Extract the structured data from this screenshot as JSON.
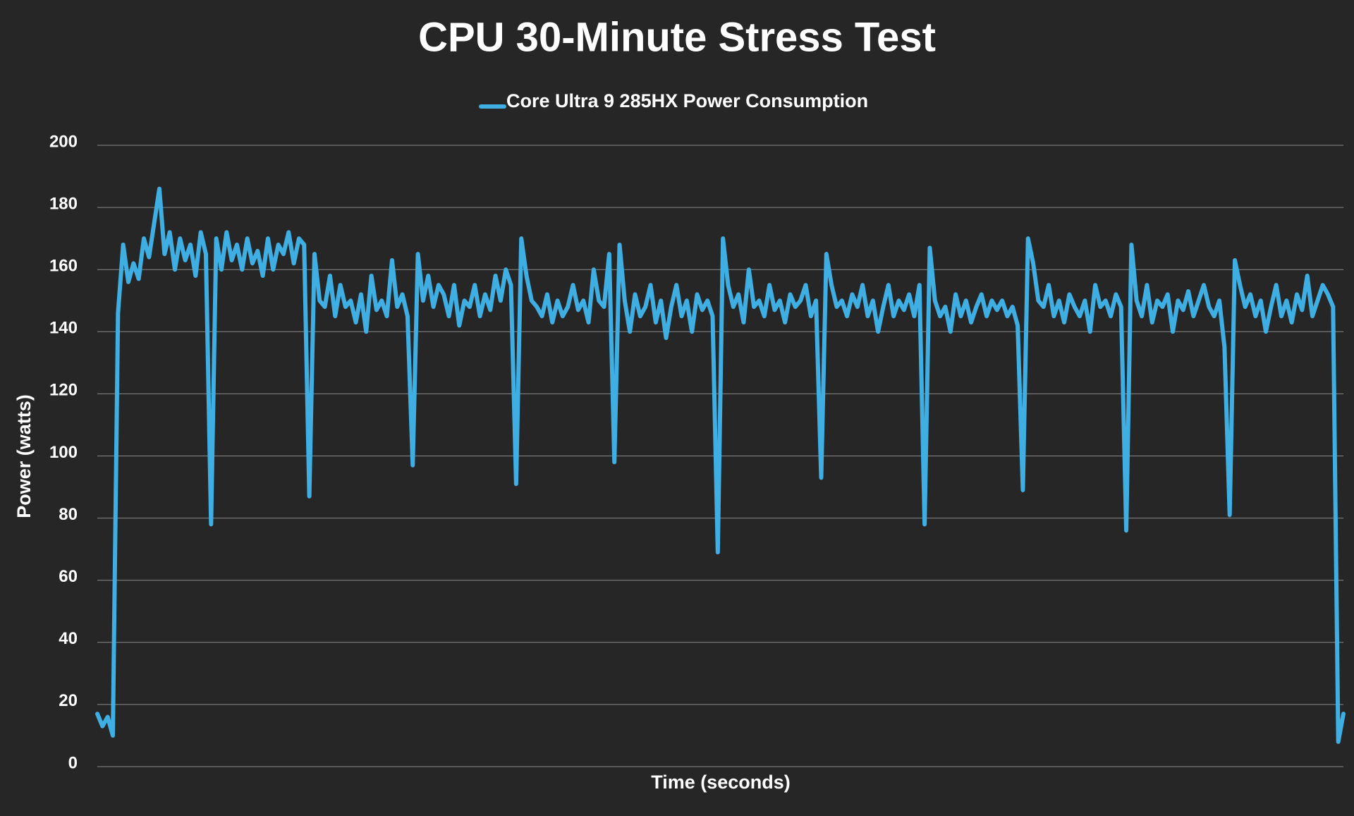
{
  "chart_data": {
    "type": "line",
    "title": "CPU 30-Minute Stress Test",
    "xlabel": "Time (seconds)",
    "ylabel": "Power (watts)",
    "ylim": [
      0,
      200
    ],
    "yticks": [
      0,
      20,
      40,
      60,
      80,
      100,
      120,
      140,
      160,
      180,
      200
    ],
    "grid": true,
    "legend": "top",
    "series": [
      {
        "name": "Core Ultra 9 285HX Power Consumption",
        "color": "#3eaee3",
        "values": [
          17,
          13,
          16,
          10,
          146,
          168,
          156,
          162,
          157,
          170,
          164,
          175,
          186,
          165,
          172,
          160,
          170,
          163,
          168,
          158,
          172,
          165,
          78,
          170,
          160,
          172,
          163,
          168,
          160,
          170,
          162,
          166,
          158,
          170,
          160,
          168,
          165,
          172,
          162,
          170,
          168,
          87,
          165,
          150,
          148,
          158,
          145,
          155,
          148,
          150,
          143,
          152,
          140,
          158,
          147,
          150,
          145,
          163,
          148,
          152,
          145,
          97,
          165,
          150,
          158,
          148,
          155,
          152,
          145,
          155,
          142,
          150,
          148,
          155,
          145,
          152,
          147,
          158,
          150,
          160,
          155,
          91,
          170,
          158,
          150,
          148,
          145,
          152,
          143,
          150,
          145,
          148,
          155,
          147,
          150,
          143,
          160,
          150,
          148,
          165,
          98,
          168,
          150,
          140,
          152,
          145,
          148,
          155,
          143,
          150,
          138,
          148,
          155,
          145,
          150,
          140,
          152,
          147,
          150,
          145,
          69,
          170,
          155,
          148,
          152,
          143,
          160,
          148,
          150,
          145,
          155,
          147,
          150,
          143,
          152,
          148,
          150,
          155,
          145,
          150,
          93,
          165,
          155,
          148,
          150,
          145,
          152,
          148,
          155,
          145,
          150,
          140,
          148,
          155,
          145,
          150,
          147,
          152,
          145,
          155,
          78,
          167,
          150,
          145,
          148,
          140,
          152,
          145,
          150,
          143,
          148,
          152,
          145,
          150,
          147,
          150,
          145,
          148,
          142,
          89,
          170,
          162,
          150,
          148,
          155,
          145,
          150,
          143,
          152,
          148,
          145,
          150,
          140,
          155,
          148,
          150,
          145,
          152,
          148,
          76,
          168,
          150,
          145,
          155,
          143,
          150,
          148,
          152,
          140,
          150,
          147,
          153,
          145,
          150,
          155,
          148,
          145,
          150,
          135,
          81,
          163,
          155,
          148,
          152,
          145,
          150,
          140,
          148,
          155,
          145,
          150,
          143,
          152,
          147,
          158,
          145,
          150,
          155,
          152,
          148,
          8,
          17
        ]
      }
    ]
  }
}
